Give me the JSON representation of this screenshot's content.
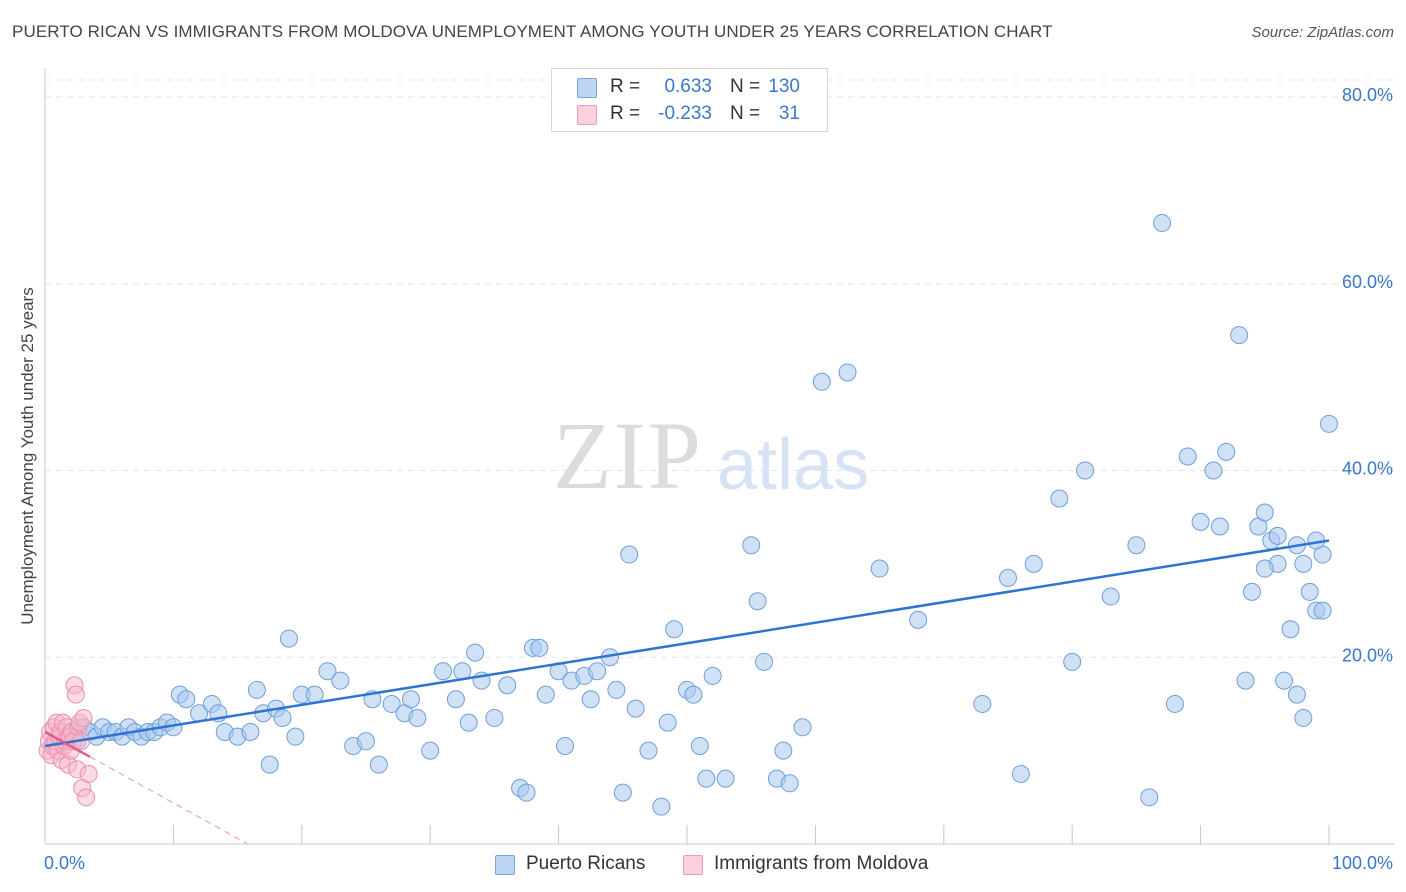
{
  "title": "PUERTO RICAN VS IMMIGRANTS FROM MOLDOVA UNEMPLOYMENT AMONG YOUTH UNDER 25 YEARS CORRELATION CHART",
  "source": "Source: ZipAtlas.com",
  "watermark": {
    "zip": "ZIP",
    "atlas": "atlas"
  },
  "legend": {
    "r_label": "R =",
    "n_label": "N =",
    "rows": [
      {
        "r": "0.633",
        "n": "130"
      },
      {
        "r": "-0.233",
        "n": "31"
      }
    ]
  },
  "chart_data": {
    "type": "scatter",
    "title": "PUERTO RICAN VS IMMIGRANTS FROM MOLDOVA UNEMPLOYMENT AMONG YOUTH UNDER 25 YEARS CORRELATION CHART",
    "xlabel": "",
    "ylabel": "Unemployment Among Youth under 25 years",
    "xlim": [
      0,
      100
    ],
    "ylim": [
      0,
      80
    ],
    "y_ticks": [
      20,
      40,
      60,
      80
    ],
    "y_tick_labels": [
      "20.0%",
      "40.0%",
      "60.0%",
      "80.0%"
    ],
    "x_tick_labels": [
      "0.0%",
      "100.0%"
    ],
    "grid": "horizontal dashed",
    "legend_position": "top-center",
    "colors": {
      "puerto_ricans": "#a9c8ef",
      "puerto_ricans_line": "#2e74d0",
      "moldova": "#f5b8cb",
      "moldova_line": "#e05e8a"
    },
    "series": [
      {
        "name": "Puerto Ricans",
        "r": 0.633,
        "n": 130,
        "trend": {
          "x": [
            0,
            100
          ],
          "y": [
            10.5,
            32.5
          ]
        },
        "points": [
          [
            1,
            11
          ],
          [
            1.5,
            11.5
          ],
          [
            2,
            12
          ],
          [
            2.5,
            11
          ],
          [
            3,
            12.5
          ],
          [
            3.5,
            12
          ],
          [
            4,
            11.5
          ],
          [
            4.5,
            12.5
          ],
          [
            5,
            12
          ],
          [
            5.5,
            12
          ],
          [
            6,
            11.5
          ],
          [
            6.5,
            12.5
          ],
          [
            7,
            12
          ],
          [
            7.5,
            11.5
          ],
          [
            8,
            12
          ],
          [
            8.5,
            12
          ],
          [
            9,
            12.5
          ],
          [
            9.5,
            13
          ],
          [
            10,
            12.5
          ],
          [
            10.5,
            16
          ],
          [
            11,
            15.5
          ],
          [
            12,
            14
          ],
          [
            13,
            15
          ],
          [
            13.5,
            14
          ],
          [
            14,
            12
          ],
          [
            15,
            11.5
          ],
          [
            16,
            12
          ],
          [
            16.5,
            16.5
          ],
          [
            17,
            14
          ],
          [
            17.5,
            8.5
          ],
          [
            18,
            14.5
          ],
          [
            18.5,
            13.5
          ],
          [
            19,
            22
          ],
          [
            19.5,
            11.5
          ],
          [
            20,
            16
          ],
          [
            21,
            16
          ],
          [
            22,
            18.5
          ],
          [
            23,
            17.5
          ],
          [
            24,
            10.5
          ],
          [
            25,
            11
          ],
          [
            25.5,
            15.5
          ],
          [
            26,
            8.5
          ],
          [
            27,
            15
          ],
          [
            28,
            14
          ],
          [
            28.5,
            15.5
          ],
          [
            29,
            13.5
          ],
          [
            30,
            10
          ],
          [
            31,
            18.5
          ],
          [
            32,
            15.5
          ],
          [
            32.5,
            18.5
          ],
          [
            33,
            13
          ],
          [
            33.5,
            20.5
          ],
          [
            34,
            17.5
          ],
          [
            35,
            13.5
          ],
          [
            36,
            17
          ],
          [
            37,
            6
          ],
          [
            37.5,
            5.5
          ],
          [
            38,
            21
          ],
          [
            38.5,
            21
          ],
          [
            39,
            16
          ],
          [
            40,
            18.5
          ],
          [
            40.5,
            10.5
          ],
          [
            41,
            17.5
          ],
          [
            42,
            18
          ],
          [
            42.5,
            15.5
          ],
          [
            43,
            18.5
          ],
          [
            44,
            20
          ],
          [
            44.5,
            16.5
          ],
          [
            45,
            5.5
          ],
          [
            45.5,
            31
          ],
          [
            46,
            14.5
          ],
          [
            47,
            10
          ],
          [
            48,
            4
          ],
          [
            48.5,
            13
          ],
          [
            49,
            23
          ],
          [
            50,
            16.5
          ],
          [
            50.5,
            16
          ],
          [
            51,
            10.5
          ],
          [
            51.5,
            7
          ],
          [
            52,
            18
          ],
          [
            53,
            7
          ],
          [
            55,
            32
          ],
          [
            55.5,
            26
          ],
          [
            56,
            19.5
          ],
          [
            57,
            7
          ],
          [
            57.5,
            10
          ],
          [
            58,
            6.5
          ],
          [
            59,
            12.5
          ],
          [
            60.5,
            49.5
          ],
          [
            62.5,
            50.5
          ],
          [
            65,
            29.5
          ],
          [
            68,
            24
          ],
          [
            73,
            15
          ],
          [
            75,
            28.5
          ],
          [
            76,
            7.5
          ],
          [
            77,
            30
          ],
          [
            79,
            37
          ],
          [
            80,
            19.5
          ],
          [
            81,
            40
          ],
          [
            83,
            26.5
          ],
          [
            85,
            32
          ],
          [
            86,
            5
          ],
          [
            87,
            66.5
          ],
          [
            88,
            15
          ],
          [
            89,
            41.5
          ],
          [
            90,
            34.5
          ],
          [
            91,
            40
          ],
          [
            91.5,
            34
          ],
          [
            92,
            42
          ],
          [
            93,
            54.5
          ],
          [
            93.5,
            17.5
          ],
          [
            94,
            27
          ],
          [
            94.5,
            34
          ],
          [
            95,
            35.5
          ],
          [
            95.5,
            32.5
          ],
          [
            96,
            30
          ],
          [
            96.5,
            17.5
          ],
          [
            97,
            23
          ],
          [
            97.5,
            16
          ],
          [
            98,
            13.5
          ],
          [
            98.5,
            27
          ],
          [
            99,
            25
          ],
          [
            99.5,
            31
          ],
          [
            99.5,
            25
          ],
          [
            99,
            32.5
          ],
          [
            98,
            30
          ],
          [
            97.5,
            32
          ],
          [
            96,
            33
          ],
          [
            95,
            29.5
          ],
          [
            100,
            45
          ]
        ]
      },
      {
        "name": "Immigrants from Moldova",
        "r": -0.233,
        "n": 31,
        "trend": {
          "x": [
            0,
            100
          ],
          "y": [
            12.0,
            -64.0
          ]
        },
        "points": [
          [
            0.2,
            10
          ],
          [
            0.3,
            11
          ],
          [
            0.4,
            12
          ],
          [
            0.5,
            9.5
          ],
          [
            0.6,
            10.5
          ],
          [
            0.7,
            12.5
          ],
          [
            0.8,
            11
          ],
          [
            0.9,
            13
          ],
          [
            1,
            10
          ],
          [
            1.1,
            11.5
          ],
          [
            1.2,
            12
          ],
          [
            1.3,
            9
          ],
          [
            1.4,
            13
          ],
          [
            1.5,
            10.5
          ],
          [
            1.6,
            11
          ],
          [
            1.7,
            12.5
          ],
          [
            1.8,
            8.5
          ],
          [
            1.9,
            11.5
          ],
          [
            2,
            10
          ],
          [
            2.1,
            12
          ],
          [
            2.2,
            11
          ],
          [
            2.3,
            17
          ],
          [
            2.4,
            16
          ],
          [
            2.5,
            8
          ],
          [
            2.6,
            12.5
          ],
          [
            2.7,
            13
          ],
          [
            2.8,
            11
          ],
          [
            2.9,
            6
          ],
          [
            3,
            13.5
          ],
          [
            3.2,
            5
          ],
          [
            3.4,
            7.5
          ]
        ]
      }
    ]
  },
  "bottom_legend": [
    "Puerto Ricans",
    "Immigrants from Moldova"
  ]
}
